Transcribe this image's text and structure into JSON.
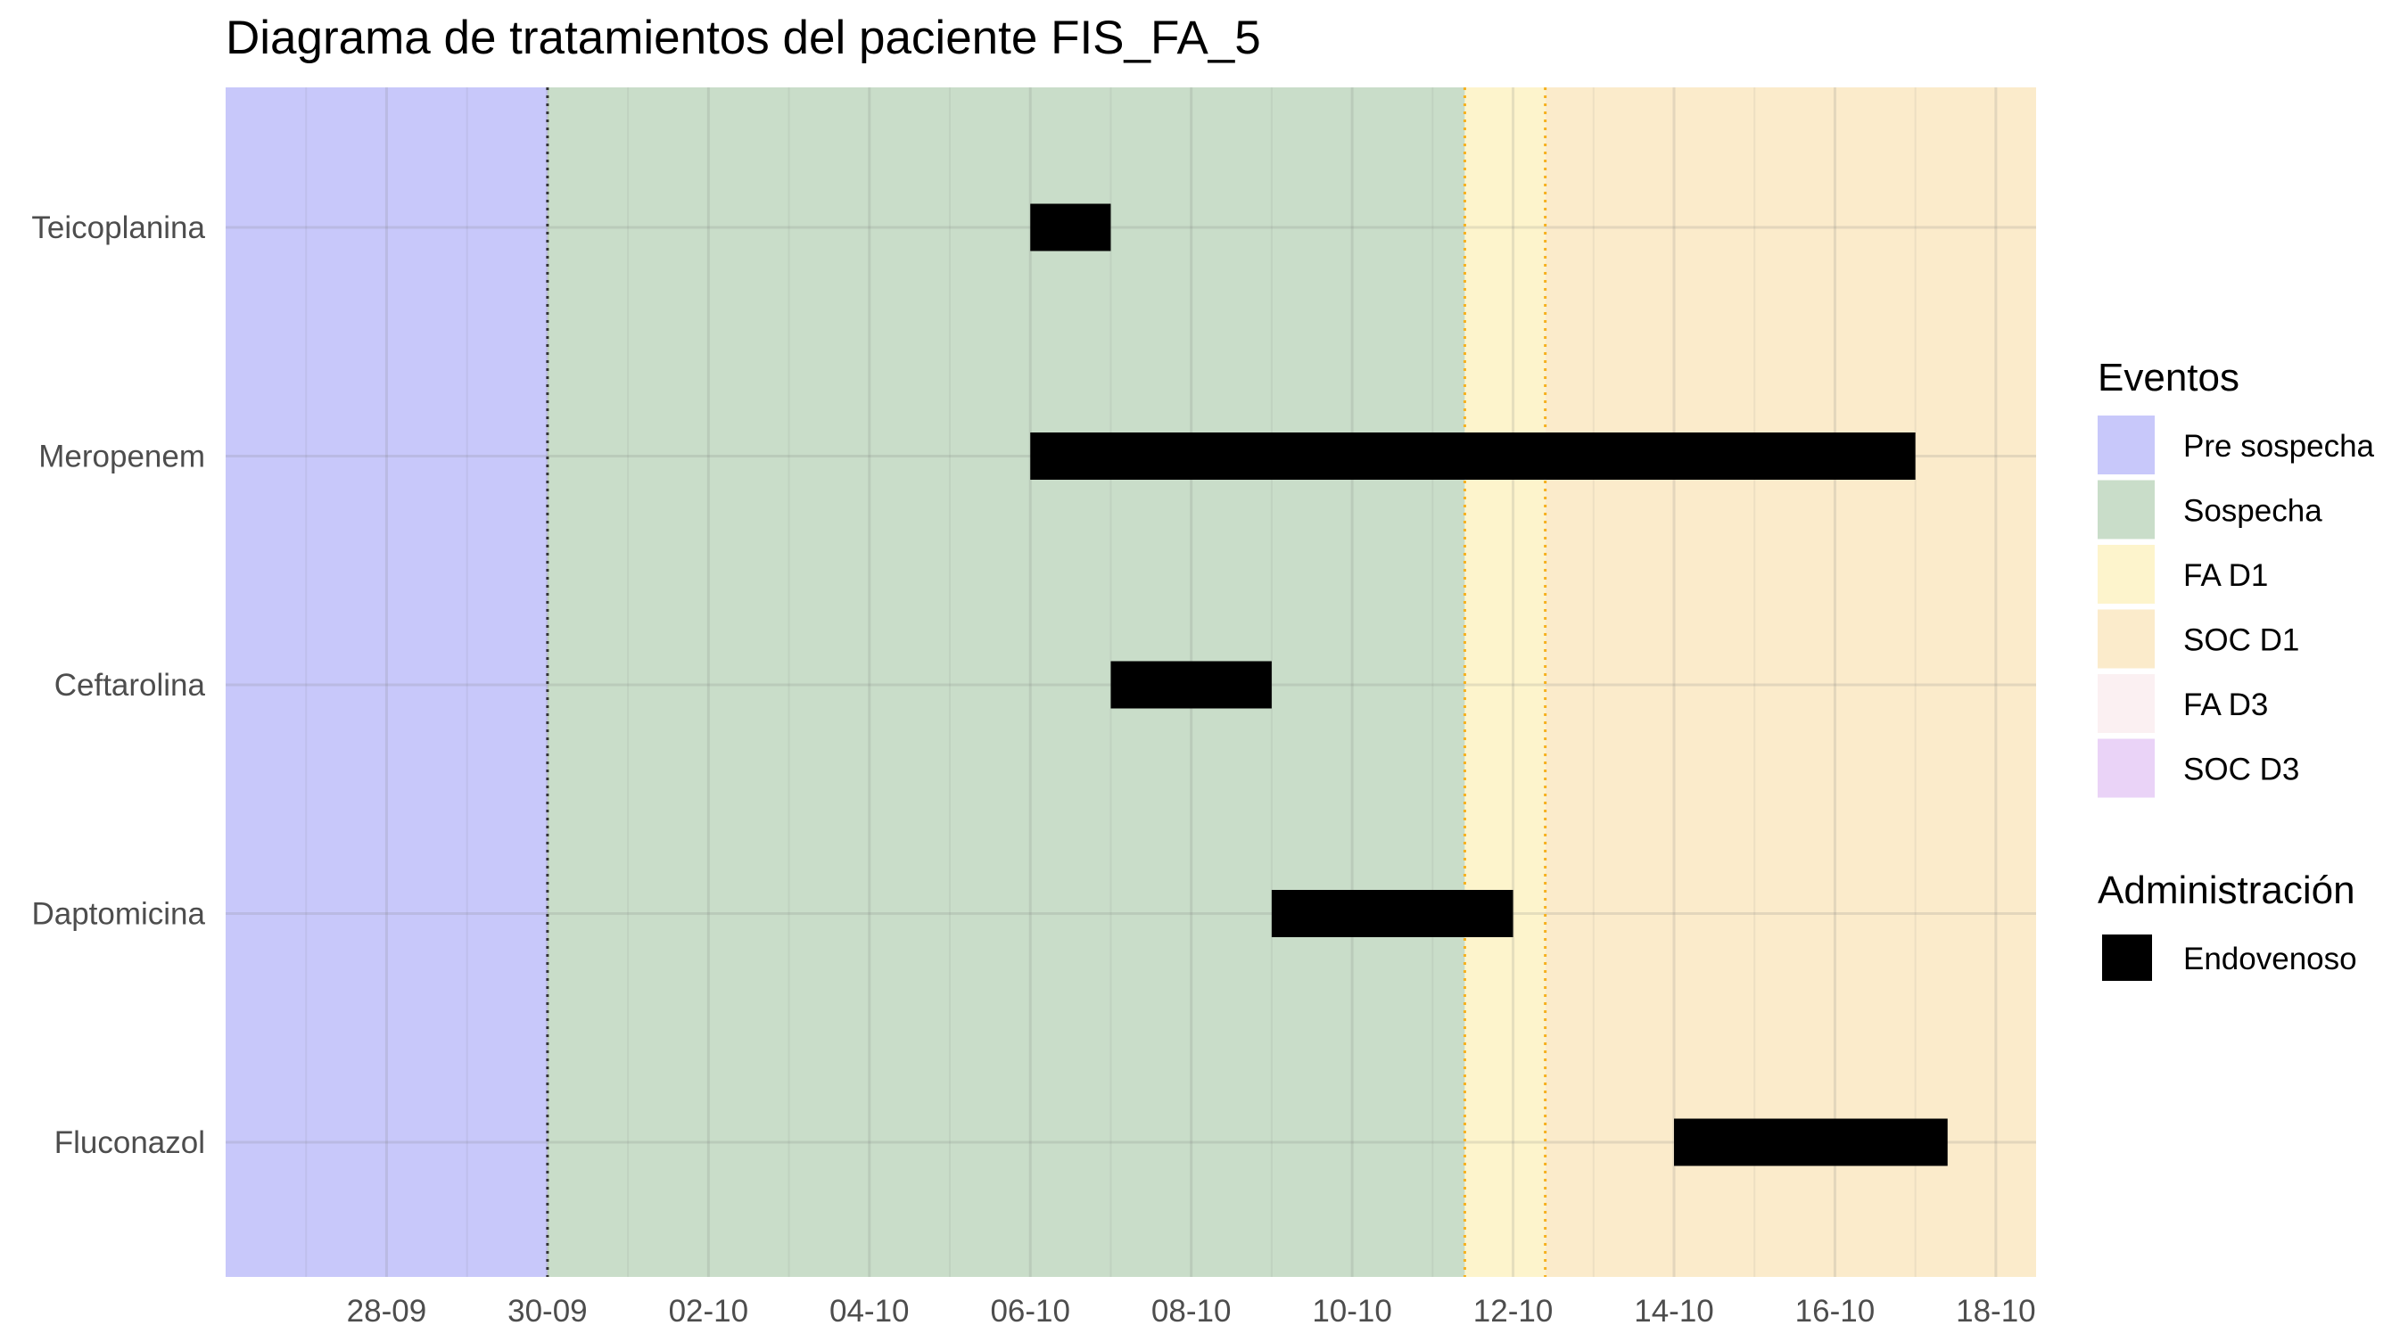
{
  "chart_data": {
    "type": "bar",
    "subtype": "gantt-timeline",
    "title": "Diagrama de tratamientos del paciente FIS_FA_5",
    "xlabel": "",
    "ylabel": "",
    "x_axis": {
      "type": "date",
      "range": [
        "2024-09-26",
        "2024-10-18.5"
      ],
      "ticks": [
        "2024-09-28",
        "2024-09-30",
        "2024-10-02",
        "2024-10-04",
        "2024-10-06",
        "2024-10-08",
        "2024-10-10",
        "2024-10-12",
        "2024-10-14",
        "2024-10-16",
        "2024-10-18"
      ],
      "tick_labels": [
        "28-09",
        "30-09",
        "02-10",
        "04-10",
        "06-10",
        "08-10",
        "10-10",
        "12-10",
        "14-10",
        "16-10",
        "18-10"
      ],
      "grid": true
    },
    "categories": [
      "Teicoplanina",
      "Meropenem",
      "Ceftarolina",
      "Daptomicina",
      "Fluconazol"
    ],
    "series": [
      {
        "name": "Endovenoso",
        "color": "#000000",
        "bars": [
          {
            "category": "Teicoplanina",
            "start": "2024-10-06",
            "end": "2024-10-07"
          },
          {
            "category": "Meropenem",
            "start": "2024-10-06",
            "end": "2024-10-17"
          },
          {
            "category": "Ceftarolina",
            "start": "2024-10-07",
            "end": "2024-10-09"
          },
          {
            "category": "Daptomicina",
            "start": "2024-10-09",
            "end": "2024-10-12"
          },
          {
            "category": "Fluconazol",
            "start": "2024-10-14",
            "end": "2024-10-17.4"
          }
        ]
      }
    ],
    "event_periods": [
      {
        "name": "Pre sospecha",
        "start": "2024-09-26",
        "end": "2024-09-30",
        "color": "#c8c8fa"
      },
      {
        "name": "Sospecha",
        "start": "2024-09-30",
        "end": "2024-10-11.4",
        "color": "#c9ddc9"
      },
      {
        "name": "FA D1",
        "start": "2024-10-11.4",
        "end": "2024-10-12.4",
        "color": "#fdf4cc"
      },
      {
        "name": "SOC D1",
        "start": "2024-10-12.4",
        "end": "2024-10-18.5",
        "color": "#fbebcb"
      }
    ],
    "event_lines": [
      {
        "date": "2024-09-30",
        "style": "dotted",
        "color": "#333333"
      },
      {
        "date": "2024-10-11.4",
        "style": "dotted",
        "color": "#f5b120"
      },
      {
        "date": "2024-10-12.4",
        "style": "dotted",
        "color": "#f5b120"
      }
    ],
    "legend": {
      "placement": "right",
      "groups": [
        {
          "title": "Eventos",
          "items": [
            {
              "label": "Pre sospecha",
              "color": "#c8c8fa"
            },
            {
              "label": "Sospecha",
              "color": "#c9ddc9"
            },
            {
              "label": "FA D1",
              "color": "#fdf4cc"
            },
            {
              "label": "SOC D1",
              "color": "#fbebcb"
            },
            {
              "label": "FA D3",
              "color": "#fbf0f2"
            },
            {
              "label": "SOC D3",
              "color": "#ead3f7"
            }
          ]
        },
        {
          "title": "Administración",
          "items": [
            {
              "label": "Endovenoso",
              "color": "#000000"
            }
          ]
        }
      ]
    }
  }
}
